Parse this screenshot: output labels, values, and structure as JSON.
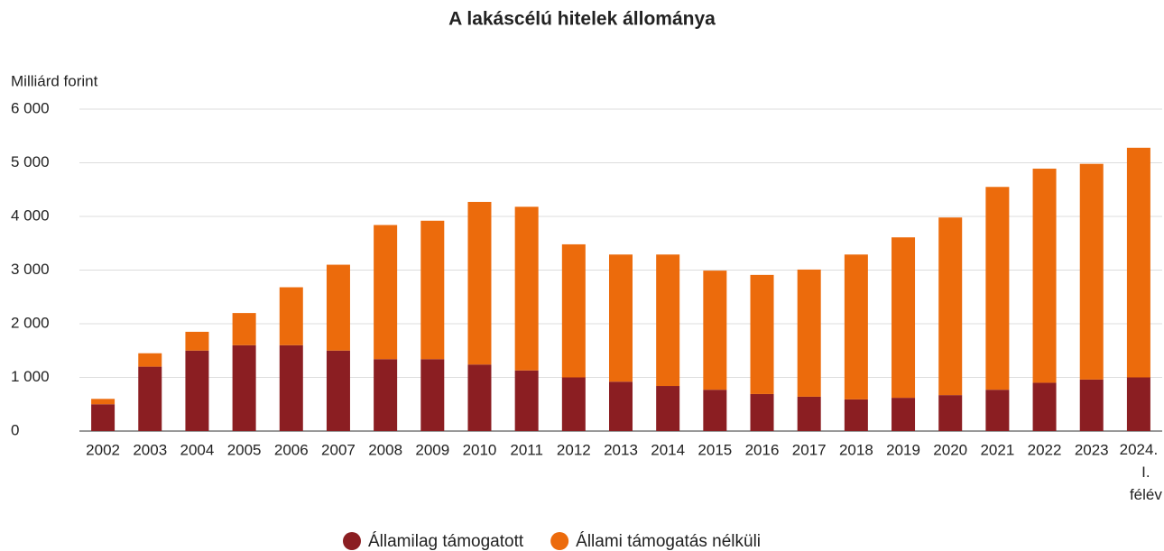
{
  "chart_data": {
    "type": "stacked_bar",
    "title": "A lakáscélú hitelek állománya",
    "y_label": "Milliárd forint",
    "categories": [
      "2002",
      "2003",
      "2004",
      "2005",
      "2006",
      "2007",
      "2008",
      "2009",
      "2010",
      "2011",
      "2012",
      "2013",
      "2014",
      "2015",
      "2016",
      "2017",
      "2018",
      "2019",
      "2020",
      "2021",
      "2022",
      "2023",
      "2024. I. félév"
    ],
    "series": [
      {
        "name": "Államilag támogatott",
        "color": "#8b1e22",
        "values": [
          500,
          1200,
          1500,
          1600,
          1600,
          1500,
          1340,
          1340,
          1240,
          1130,
          1000,
          920,
          840,
          770,
          690,
          640,
          590,
          620,
          670,
          770,
          900,
          960,
          1000
        ]
      },
      {
        "name": "Állami támogatás nélküli",
        "color": "#ec6b0c",
        "values": [
          100,
          250,
          350,
          600,
          1080,
          1600,
          2500,
          2580,
          3030,
          3050,
          2480,
          2370,
          2450,
          2220,
          2220,
          2370,
          2700,
          2990,
          3310,
          3780,
          3990,
          4020,
          4280
        ]
      }
    ],
    "ylim": [
      0,
      6000
    ],
    "yticks": [
      0,
      {
        "value": 1000,
        "label": "1 000"
      },
      {
        "value": 2000,
        "label": "2 000"
      },
      {
        "value": 3000,
        "label": "3 000"
      },
      {
        "value": 4000,
        "label": "4 000"
      },
      {
        "value": 5000,
        "label": "5 000"
      },
      {
        "value": 6000,
        "label": "6 000"
      }
    ],
    "grid": true,
    "legend": "bottom"
  }
}
